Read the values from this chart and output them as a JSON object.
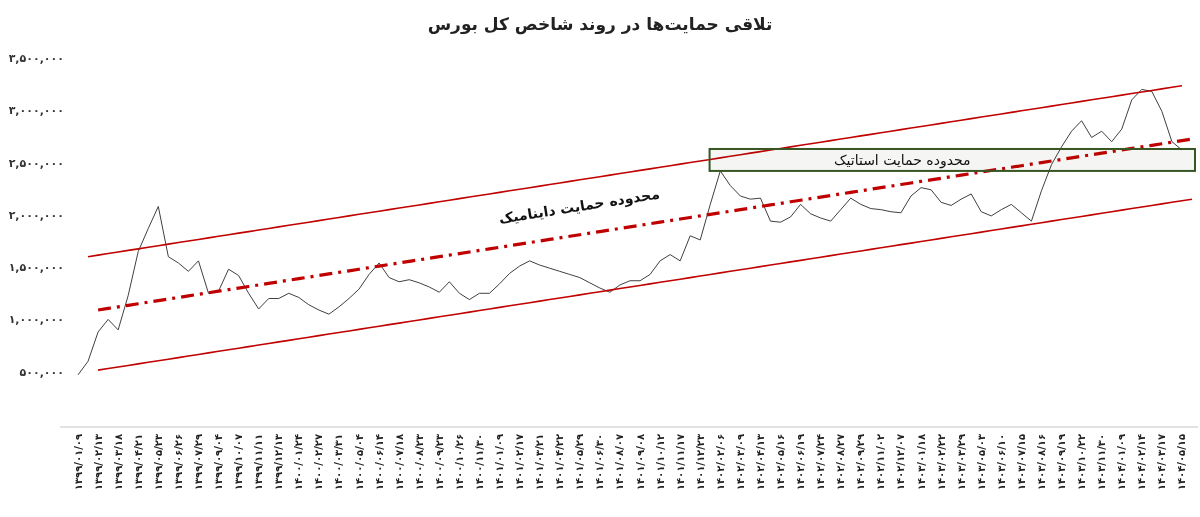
{
  "chart_data": {
    "type": "line",
    "title": "تلاقی حمایت‌ها در روند شاخص کل بورس",
    "annotations": [
      "محدوده حمایت داینامیک"
    ],
    "categories": [
      "۱۳۹۹/۰۱/۰۹",
      null,
      "۱۳۹۹/۰۲/۱۳",
      null,
      "۱۳۹۹/۰۳/۱۸",
      null,
      "۱۳۹۹/۰۴/۲۱",
      null,
      "۱۳۹۹/۰۵/۲۳",
      null,
      "۱۳۹۹/۰۶/۲۶",
      null,
      "۱۳۹۹/۰۷/۲۹",
      null,
      "۱۳۹۹/۰۹/۰۴",
      null,
      "۱۳۹۹/۱۰/۰۷",
      null,
      "۱۳۹۹/۱۱/۱۱",
      null,
      "۱۳۹۹/۱۲/۱۳",
      null,
      "۱۴۰۰/۰۱/۲۴",
      null,
      "۱۴۰۰/۰۲/۲۷",
      null,
      "۱۴۰۰/۰۳/۳۱",
      null,
      "۱۴۰۰/۰۵/۰۴",
      null,
      "۱۴۰۰/۰۶/۱۴",
      null,
      "۱۴۰۰/۰۷/۱۸",
      null,
      "۱۴۰۰/۰۸/۲۳",
      null,
      "۱۴۰۰/۰۹/۲۳",
      null,
      "۱۴۰۰/۱۰/۲۶",
      null,
      "۱۴۰۰/۱۱/۳۰",
      null,
      "۱۴۰۱/۰۱/۰۹",
      null,
      "۱۴۰۱/۰۲/۱۷",
      null,
      "۱۴۰۱/۰۳/۲۱",
      null,
      "۱۴۰۱/۰۴/۲۲",
      null,
      "۱۴۰۱/۰۵/۲۹",
      null,
      "۱۴۰۱/۰۶/۳۰",
      null,
      "۱۴۰۱/۰۸/۰۷",
      null,
      "۱۴۰۱/۰۹/۰۸",
      null,
      "۱۴۰۱/۱۰/۱۲",
      null,
      "۱۴۰۱/۱۱/۱۷",
      null,
      "۱۴۰۱/۱۲/۲۳",
      null,
      "۱۴۰۲/۰۲/۰۶",
      null,
      "۱۴۰۲/۰۳/۰۹",
      null,
      "۱۴۰۲/۰۴/۱۳",
      null,
      "۱۴۰۲/۰۵/۱۶",
      null,
      "۱۴۰۲/۰۶/۱۹",
      null,
      "۱۴۰۲/۰۷/۲۴",
      null,
      "۱۴۰۲/۰۸/۲۷",
      null,
      "۱۴۰۲/۰۹/۲۹",
      null,
      "۱۴۰۲/۱۱/۰۲",
      null,
      "۱۴۰۲/۱۲/۰۷",
      null,
      "۱۴۰۳/۰۱/۱۸",
      null,
      "۱۴۰۳/۰۲/۲۲",
      null,
      "۱۴۰۳/۰۳/۲۹",
      null,
      "۱۴۰۳/۰۵/۰۳",
      null,
      "۱۴۰۳/۰۶/۱۰",
      null,
      "۱۴۰۳/۰۷/۱۵",
      null,
      "۱۴۰۳/۰۸/۱۶",
      null,
      "۱۴۰۳/۰۹/۱۹",
      null,
      "۱۴۰۳/۱۰/۲۲",
      null,
      "۱۴۰۳/۱۱/۳۰",
      null,
      "۱۴۰۴/۰۱/۰۹",
      null,
      "۱۴۰۴/۰۲/۱۴",
      null,
      "۱۴۰۴/۰۳/۱۷",
      null,
      "۱۴۰۴/۰۵/۱۵",
      null
    ],
    "ylim": [
      0,
      3500000
    ],
    "yticks": [
      {
        "value": 500000,
        "label": "۵۰۰,۰۰۰"
      },
      {
        "value": 1000000,
        "label": "۱,۰۰۰,۰۰۰"
      },
      {
        "value": 1500000,
        "label": "۱,۵۰۰,۰۰۰"
      },
      {
        "value": 2000000,
        "label": "۲,۰۰۰,۰۰۰"
      },
      {
        "value": 2500000,
        "label": "۲,۵۰۰,۰۰۰"
      },
      {
        "value": 3000000,
        "label": "۳,۰۰۰,۰۰۰"
      },
      {
        "value": 3500000,
        "label": "۳,۵۰۰,۰۰۰"
      }
    ],
    "series": [
      {
        "color": "#404040",
        "values": [
          470000,
          600000,
          880000,
          1000000,
          900000,
          1230000,
          1650000,
          1870000,
          2080000,
          1600000,
          1540000,
          1460000,
          1560000,
          1250000,
          1270000,
          1480000,
          1420000,
          1250000,
          1100000,
          1200000,
          1200000,
          1250000,
          1210000,
          1140000,
          1090000,
          1050000,
          1120000,
          1200000,
          1290000,
          1430000,
          1540000,
          1400000,
          1360000,
          1380000,
          1350000,
          1310000,
          1260000,
          1360000,
          1250000,
          1190000,
          1250000,
          1250000,
          1340000,
          1440000,
          1510000,
          1560000,
          1520000,
          1490000,
          1460000,
          1430000,
          1400000,
          1350000,
          1300000,
          1260000,
          1330000,
          1370000,
          1370000,
          1430000,
          1560000,
          1620000,
          1560000,
          1800000,
          1760000,
          2100000,
          2420000,
          2280000,
          2180000,
          2150000,
          2160000,
          1940000,
          1930000,
          1980000,
          2100000,
          2010000,
          1970000,
          1940000,
          2050000,
          2160000,
          2100000,
          2060000,
          2050000,
          2030000,
          2020000,
          2180000,
          2260000,
          2240000,
          2120000,
          2090000,
          2150000,
          2200000,
          2030000,
          1990000,
          2050000,
          2100000,
          2020000,
          1940000,
          2230000,
          2480000,
          2650000,
          2800000,
          2900000,
          2740000,
          2800000,
          2700000,
          2820000,
          3100000,
          3200000,
          3180000,
          2990000,
          2700000,
          2620000,
          null
        ]
      },
      {
        "color": "#c00000",
        "line_style": "solid",
        "values": [
          null,
          1600000,
          1615000,
          1630000,
          1645000,
          1660000,
          1675000,
          1690000,
          1705000,
          1720000,
          1735000,
          1750000,
          1765000,
          1780000,
          1795000,
          1810000,
          1825000,
          1840000,
          1855000,
          1870000,
          1885000,
          1900000,
          1915000,
          1930000,
          1945000,
          1960000,
          1975000,
          1990000,
          2005000,
          2020000,
          2035000,
          2050000,
          2065000,
          2080000,
          2095000,
          2110000,
          2125000,
          2140000,
          2155000,
          2170000,
          2185000,
          2200000,
          2215000,
          2230000,
          2245000,
          2260000,
          2275000,
          2290000,
          2305000,
          2320000,
          2335000,
          2350000,
          2365000,
          2380000,
          2395000,
          2410000,
          2425000,
          2440000,
          2455000,
          2470000,
          2485000,
          2500000,
          2515000,
          2530000,
          2545000,
          2560000,
          2575000,
          2590000,
          2605000,
          2620000,
          2635000,
          2650000,
          2665000,
          2680000,
          2695000,
          2710000,
          2725000,
          2740000,
          2755000,
          2770000,
          2785000,
          2800000,
          2815000,
          2830000,
          2845000,
          2860000,
          2875000,
          2890000,
          2905000,
          2920000,
          2935000,
          2950000,
          2965000,
          2980000,
          2995000,
          3010000,
          3025000,
          3040000,
          3055000,
          3070000,
          3085000,
          3100000,
          3115000,
          3130000,
          3145000,
          3160000,
          3175000,
          3190000,
          3205000,
          3220000,
          3235000,
          null
        ]
      },
      {
        "color": "#c00000",
        "line_style": "solid",
        "values": [
          null,
          null,
          515000,
          530000,
          545000,
          560000,
          575000,
          590000,
          605000,
          620000,
          635000,
          650000,
          665000,
          680000,
          695000,
          710000,
          725000,
          740000,
          755000,
          770000,
          785000,
          800000,
          815000,
          830000,
          845000,
          860000,
          875000,
          890000,
          905000,
          920000,
          935000,
          950000,
          965000,
          980000,
          995000,
          1010000,
          1025000,
          1040000,
          1055000,
          1070000,
          1085000,
          1100000,
          1115000,
          1130000,
          1145000,
          1160000,
          1175000,
          1190000,
          1205000,
          1220000,
          1235000,
          1250000,
          1265000,
          1280000,
          1295000,
          1310000,
          1325000,
          1340000,
          1355000,
          1370000,
          1385000,
          1400000,
          1415000,
          1430000,
          1445000,
          1460000,
          1475000,
          1490000,
          1505000,
          1520000,
          1535000,
          1550000,
          1565000,
          1580000,
          1595000,
          1610000,
          1625000,
          1640000,
          1655000,
          1670000,
          1685000,
          1700000,
          1715000,
          1730000,
          1745000,
          1760000,
          1775000,
          1790000,
          1805000,
          1820000,
          1835000,
          1850000,
          1865000,
          1880000,
          1895000,
          1910000,
          1925000,
          1940000,
          1955000,
          1970000,
          1985000,
          2000000,
          2015000,
          2030000,
          2045000,
          2060000,
          2075000,
          2090000,
          2105000,
          2120000,
          2135000,
          2150000
        ]
      },
      {
        "color": "#c00000",
        "line_style": "dashdot",
        "values": [
          null,
          null,
          1090000,
          1105000,
          1120000,
          1135000,
          1150000,
          1165000,
          1180000,
          1195000,
          1210000,
          1225000,
          1240000,
          1255000,
          1270000,
          1285000,
          1300000,
          1315000,
          1330000,
          1345000,
          1360000,
          1375000,
          1390000,
          1405000,
          1420000,
          1435000,
          1450000,
          1465000,
          1480000,
          1495000,
          1510000,
          1525000,
          1540000,
          1555000,
          1570000,
          1585000,
          1600000,
          1615000,
          1630000,
          1645000,
          1660000,
          1675000,
          1690000,
          1705000,
          1720000,
          1735000,
          1750000,
          1765000,
          1780000,
          1795000,
          1810000,
          1825000,
          1840000,
          1855000,
          1870000,
          1885000,
          1900000,
          1915000,
          1930000,
          1945000,
          1960000,
          1975000,
          1990000,
          2005000,
          2020000,
          2035000,
          2050000,
          2065000,
          2080000,
          2095000,
          2110000,
          2125000,
          2140000,
          2155000,
          2170000,
          2185000,
          2200000,
          2215000,
          2230000,
          2245000,
          2260000,
          2275000,
          2290000,
          2305000,
          2320000,
          2335000,
          2350000,
          2365000,
          2380000,
          2395000,
          2410000,
          2425000,
          2440000,
          2455000,
          2470000,
          2485000,
          2500000,
          2515000,
          2530000,
          2545000,
          2560000,
          2575000,
          2590000,
          2605000,
          2620000,
          2635000,
          2650000,
          2665000,
          2680000,
          2695000,
          2710000,
          2725000
        ]
      }
    ],
    "bands": [
      {
        "axis": "y",
        "from": 2420000,
        "to": 2630000,
        "label": "محدوده حمایت استاتیک",
        "color": "#375623"
      }
    ]
  }
}
